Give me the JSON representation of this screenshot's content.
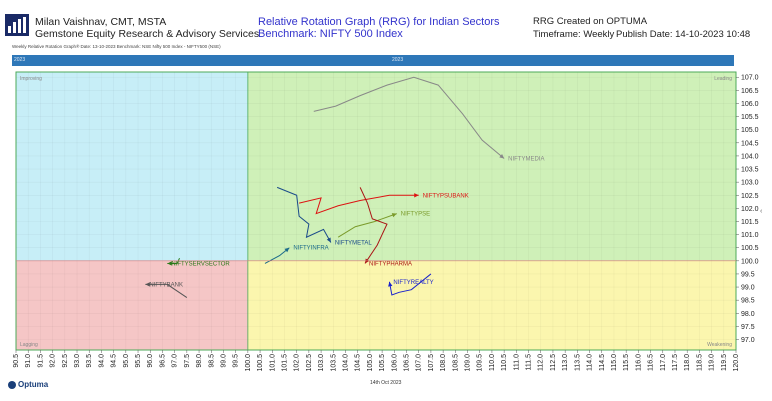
{
  "header": {
    "author": "Milan Vaishnav, CMT, MSTA",
    "org": "Gemstone Equity Research & Advisory Services",
    "title": "Relative Rotation Graph (RRG) for Indian Sectors",
    "benchmark": "Benchmark: NIFTY 500 Index",
    "rrg_created": "RRG Created on OPTUMA",
    "timeframe": "Timeframe: Weekly",
    "publish": "Publish Date: 14-10-2023 10:48",
    "subtitle": "Weekly Relative Rotation Graph®   Date: 13-10-2023  Benchmark: NSE Nifty 500 Index - NIFTY500 (NSE)",
    "topbar_left": "2023",
    "topbar_mid": "2023"
  },
  "footer": {
    "brand": "Optuma",
    "date": "14th Oct 2023"
  },
  "colors": {
    "leading": "#cff0b8",
    "weakening": "#fbf6ae",
    "lagging": "#f5c6c6",
    "improving": "#c7eef7",
    "border": "#4caa58",
    "topbar": "#2e77b8"
  },
  "chart_data": {
    "type": "scatter",
    "title": "Relative Rotation Graph (RRG) for Indian Sectors",
    "xlim": [
      90.5,
      120.0
    ],
    "ylim": [
      96.6,
      107.2
    ],
    "center": [
      100.0,
      100.0
    ],
    "x_ticks": [
      90.5,
      91.0,
      91.5,
      92.0,
      92.5,
      93.0,
      93.5,
      94.0,
      94.5,
      95.0,
      95.5,
      96.0,
      96.5,
      97.0,
      97.5,
      98.0,
      98.5,
      99.0,
      99.5,
      100.0,
      100.5,
      101.0,
      101.5,
      102.0,
      102.5,
      103.0,
      103.5,
      104.0,
      104.5,
      105.0,
      105.5,
      106.0,
      106.5,
      107.0,
      107.5,
      108.0,
      108.5,
      109.0,
      109.5,
      110.0,
      110.5,
      111.0,
      111.5,
      112.0,
      112.5,
      113.0,
      113.5,
      114.0,
      114.5,
      115.0,
      115.5,
      116.0,
      116.5,
      117.0,
      117.5,
      118.0,
      118.5,
      119.0,
      119.5,
      120.0
    ],
    "y_ticks": [
      97.0,
      97.5,
      98.0,
      98.5,
      99.0,
      99.5,
      100.0,
      100.5,
      101.0,
      101.5,
      102.0,
      102.5,
      103.0,
      103.5,
      104.0,
      104.5,
      105.0,
      105.5,
      106.0,
      106.5,
      107.0
    ],
    "quadrants": [
      "Leading",
      "Weakening",
      "Lagging",
      "Improving"
    ],
    "series": [
      {
        "name": "NIFTYMEDIA",
        "color": "#888888",
        "points": [
          [
            102.7,
            105.7
          ],
          [
            103.6,
            105.9
          ],
          [
            104.6,
            106.3
          ],
          [
            105.7,
            106.7
          ],
          [
            106.8,
            107.0
          ],
          [
            107.8,
            106.7
          ],
          [
            108.8,
            105.6
          ],
          [
            109.6,
            104.6
          ],
          [
            110.5,
            103.9
          ]
        ]
      },
      {
        "name": "NIFTYPSUBANK",
        "color": "#dd1111",
        "points": [
          [
            102.1,
            102.2
          ],
          [
            103.0,
            102.4
          ],
          [
            102.8,
            101.8
          ],
          [
            103.7,
            102.1
          ],
          [
            104.6,
            102.3
          ],
          [
            105.8,
            102.5
          ],
          [
            107.0,
            102.5
          ]
        ]
      },
      {
        "name": "NIFTYPSE",
        "color": "#7a9a2a",
        "points": [
          [
            103.7,
            100.9
          ],
          [
            104.4,
            101.3
          ],
          [
            105.2,
            101.5
          ],
          [
            106.1,
            101.8
          ]
        ]
      },
      {
        "name": "NIFTYMETAL",
        "color": "#1a4a8a",
        "points": [
          [
            101.2,
            102.8
          ],
          [
            102.0,
            102.5
          ],
          [
            102.1,
            101.7
          ],
          [
            102.5,
            101.4
          ],
          [
            102.4,
            100.9
          ],
          [
            103.1,
            101.2
          ],
          [
            103.4,
            100.7
          ]
        ]
      },
      {
        "name": "NIFTYPHARMA",
        "color": "#aa1515",
        "points": [
          [
            104.6,
            102.8
          ],
          [
            104.9,
            102.2
          ],
          [
            105.1,
            101.6
          ],
          [
            105.7,
            101.4
          ],
          [
            105.3,
            100.6
          ],
          [
            104.8,
            99.9
          ]
        ]
      },
      {
        "name": "NIFTYINFRA",
        "color": "#1a6a8a",
        "points": [
          [
            100.7,
            99.9
          ],
          [
            101.3,
            100.2
          ],
          [
            101.7,
            100.5
          ]
        ]
      },
      {
        "name": "NIFTYSERVSECTOR",
        "color": "#2a7a1a",
        "points": [
          [
            97.2,
            100.1
          ],
          [
            97.1,
            99.9
          ],
          [
            96.7,
            99.9
          ]
        ]
      },
      {
        "name": "NIFTYBANK",
        "color": "#555555",
        "points": [
          [
            97.5,
            98.6
          ],
          [
            96.7,
            99.1
          ],
          [
            95.8,
            99.1
          ]
        ]
      },
      {
        "name": "NIFTYREALTY",
        "color": "#1a22cc",
        "points": [
          [
            107.5,
            99.5
          ],
          [
            106.7,
            98.9
          ],
          [
            106.2,
            98.8
          ],
          [
            105.9,
            98.7
          ],
          [
            105.8,
            99.2
          ]
        ]
      }
    ]
  }
}
